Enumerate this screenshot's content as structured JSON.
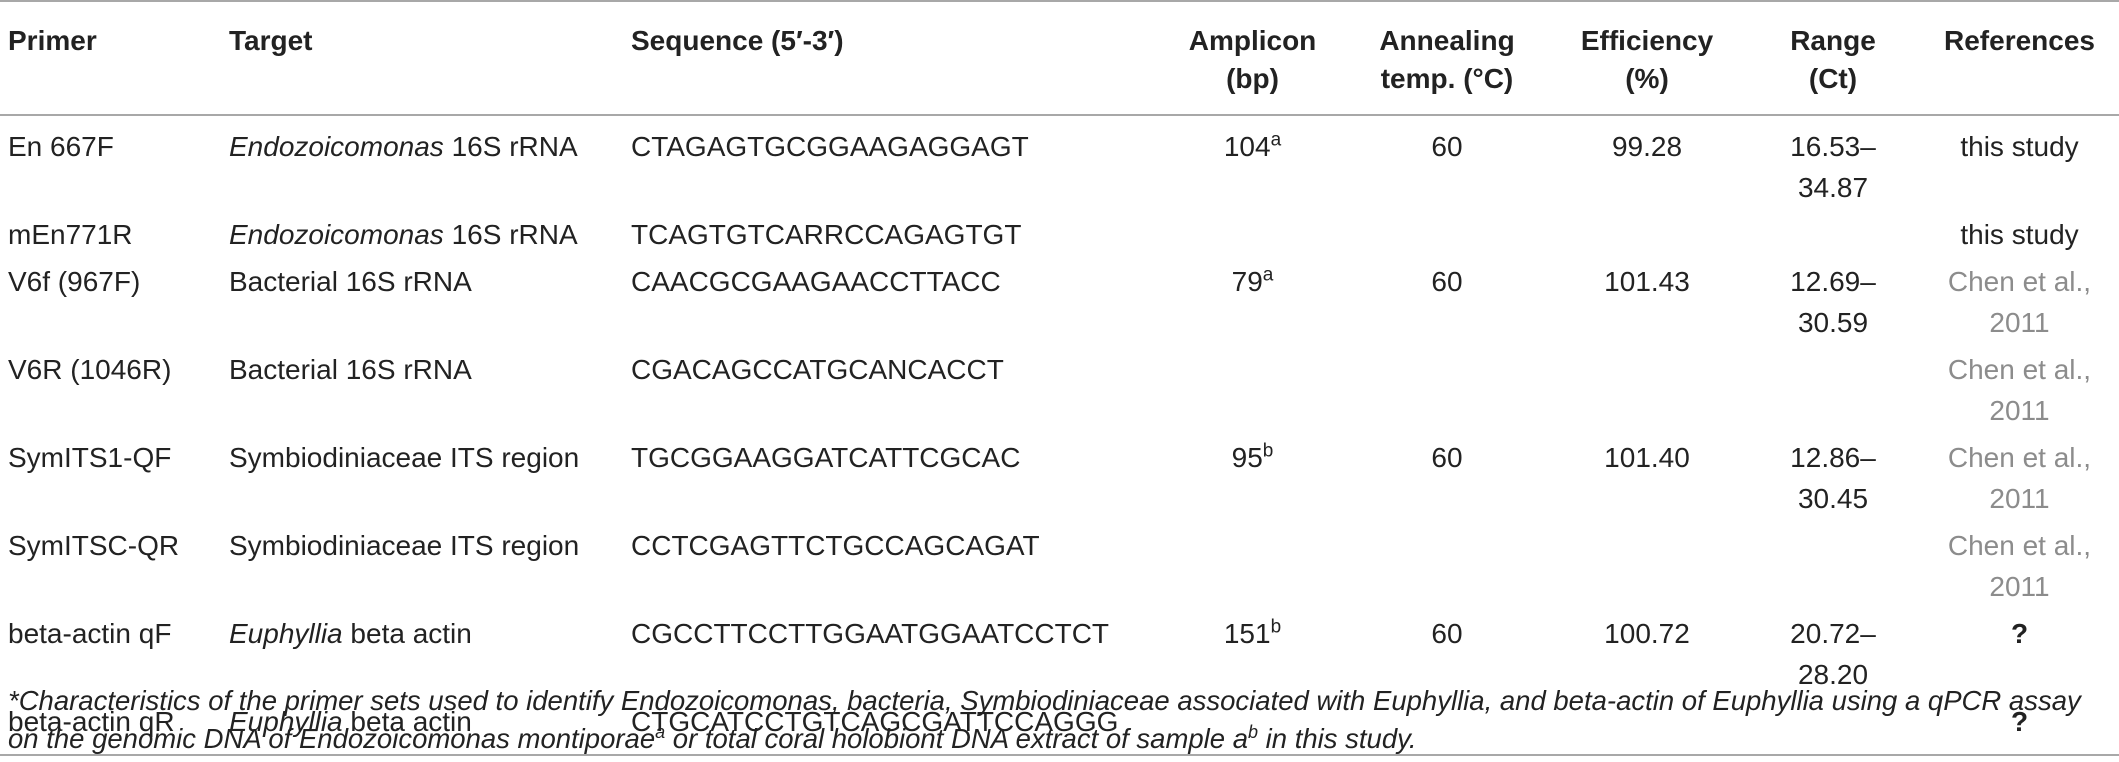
{
  "table": {
    "headers": {
      "primer": "Primer",
      "target": "Target",
      "sequence": "Sequence (5′-3′)",
      "amplicon_l1": "Amplicon",
      "amplicon_l2": "(bp)",
      "annealing_l1": "Annealing",
      "annealing_l2": "temp. (°C)",
      "efficiency_l1": "Efficiency",
      "efficiency_l2": "(%)",
      "range_l1": "Range",
      "range_l2": "(Ct)",
      "references": "References"
    },
    "rows": [
      {
        "primer": "En 667F",
        "target_italic": "Endozoicomonas",
        "target_rest": " 16S rRNA",
        "target_plain": "",
        "sequence": "CTAGAGTGCGGAAGAGGAGT",
        "amplicon": "104",
        "amplicon_sup": "a",
        "annealing": "60",
        "efficiency": "99.28",
        "range_l1": "16.53–",
        "range_l2": "34.87",
        "reference": "this study"
      },
      {
        "primer": "mEn771R",
        "target_italic": "Endozoicomonas",
        "target_rest": " 16S rRNA",
        "target_plain": "",
        "sequence": "TCAGTGTCARRCCAGAGTGT",
        "amplicon": "",
        "amplicon_sup": "",
        "annealing": "",
        "efficiency": "",
        "range_l1": "",
        "range_l2": "",
        "reference": "this study"
      },
      {
        "primer": "V6f (967F)",
        "target_italic": "",
        "target_rest": "",
        "target_plain": "Bacterial 16S rRNA",
        "sequence": "CAACGCGAAGAACCTTACC",
        "amplicon": "79",
        "amplicon_sup": "a",
        "annealing": "60",
        "efficiency": "101.43",
        "range_l1": "12.69–",
        "range_l2": "30.59",
        "reference": "Chen et al., 2011"
      },
      {
        "primer": "V6R (1046R)",
        "target_italic": "",
        "target_rest": "",
        "target_plain": "Bacterial 16S rRNA",
        "sequence": "CGACAGCCATGCANCACCT",
        "amplicon": "",
        "amplicon_sup": "",
        "annealing": "",
        "efficiency": "",
        "range_l1": "",
        "range_l2": "",
        "reference": "Chen et al., 2011"
      },
      {
        "primer": "SymITS1-QF",
        "target_italic": "",
        "target_rest": "",
        "target_plain": "Symbiodiniaceae ITS region",
        "sequence": "TGCGGAAGGATCATTCGCAC",
        "amplicon": "95",
        "amplicon_sup": "b",
        "annealing": "60",
        "efficiency": "101.40",
        "range_l1": "12.86–",
        "range_l2": "30.45",
        "reference": "Chen et al., 2011"
      },
      {
        "primer": "SymITSC-QR",
        "target_italic": "",
        "target_rest": "",
        "target_plain": "Symbiodiniaceae ITS region",
        "sequence": "CCTCGAGTTCTGCCAGCAGAT",
        "amplicon": "",
        "amplicon_sup": "",
        "annealing": "",
        "efficiency": "",
        "range_l1": "",
        "range_l2": "",
        "reference": "Chen et al., 2011"
      },
      {
        "primer": "beta-actin qF",
        "target_italic": "Euphyllia",
        "target_rest": " beta actin",
        "target_plain": "",
        "sequence": "CGCCTTCCTTGGAATGGAATCCTCT",
        "amplicon": "151",
        "amplicon_sup": "b",
        "annealing": "60",
        "efficiency": "100.72",
        "range_l1": "20.72–",
        "range_l2": "28.20",
        "reference": "?"
      },
      {
        "primer": "beta-actin qR",
        "target_italic": "Euphyllia",
        "target_rest": " beta actin",
        "target_plain": "",
        "sequence": "CTGCATCCTGTCAGCGATTCCAGGG",
        "amplicon": "",
        "amplicon_sup": "",
        "annealing": "",
        "efficiency": "",
        "range_l1": "",
        "range_l2": "",
        "reference": "?"
      }
    ]
  },
  "footnote": {
    "line1": "*Characteristics of the primer sets used to identify Endozoicomonas, bacteria, Symbiodiniaceae associated with Euphyllia, and beta-actin of Euphyllia using a qPCR assay",
    "line2_a": "on the genomic DNA of Endozoicomonas montiporae",
    "sup_a": "a",
    "line2_b": " or total coral holobiont DNA extract of sample a",
    "sup_b": "b",
    "line2_c": " in this study."
  },
  "colors": {
    "text": "#222222",
    "rule": "#a8a8a8",
    "reference_link": "#8c8c8c"
  }
}
